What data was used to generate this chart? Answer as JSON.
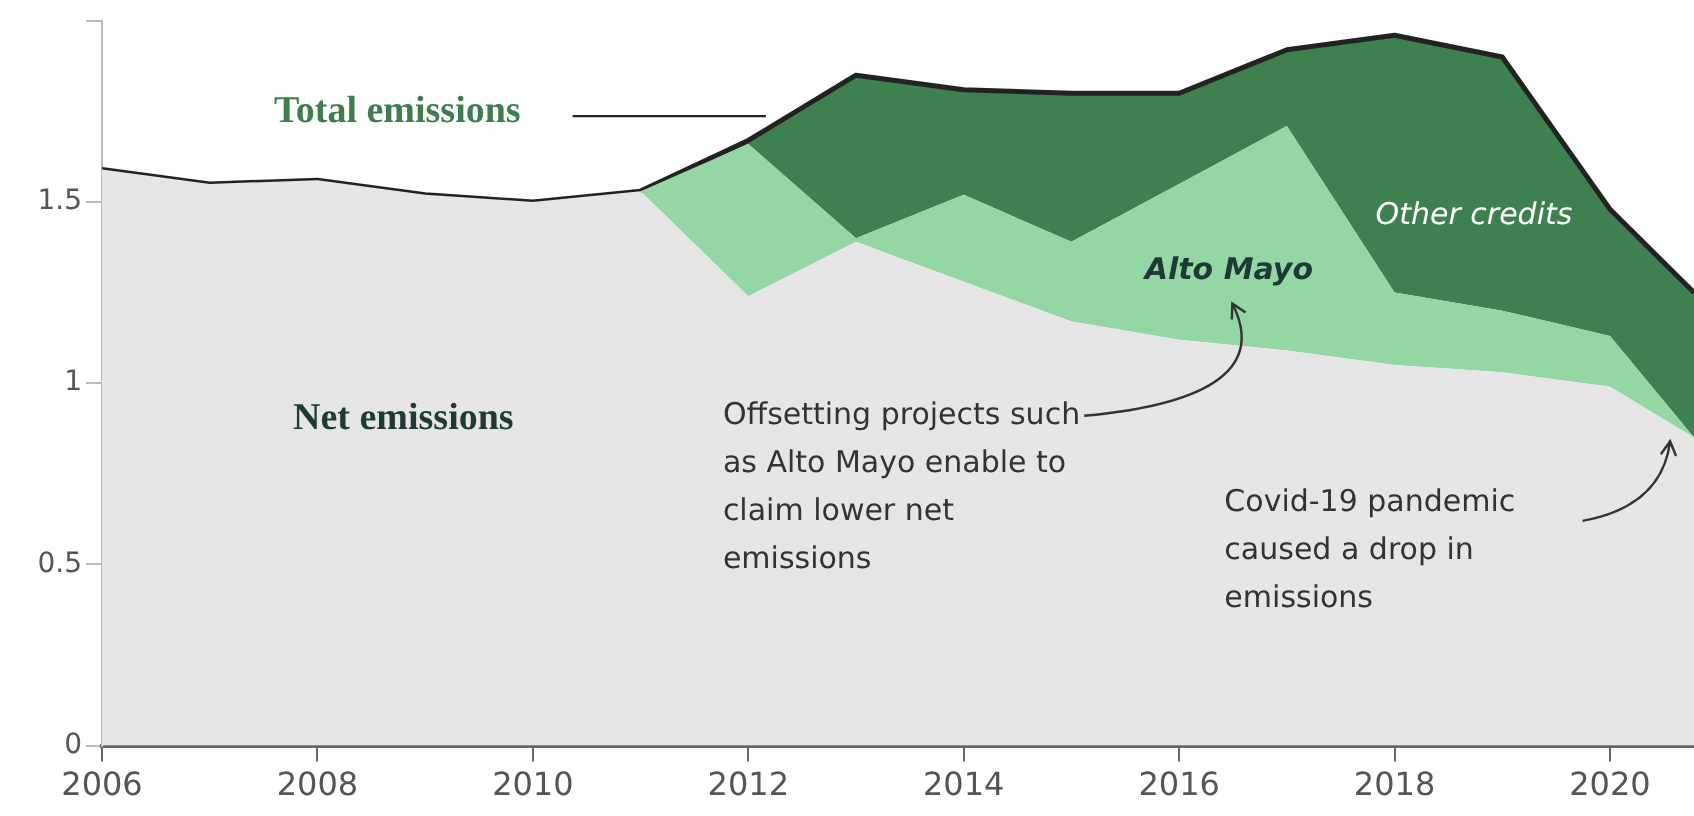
{
  "chart_data": {
    "type": "area",
    "stacked": true,
    "x": [
      2006,
      2007,
      2008,
      2009,
      2010,
      2011,
      2012,
      2013,
      2014,
      2015,
      2016,
      2017,
      2018,
      2019,
      2020,
      2020.78
    ],
    "xlim": [
      2006,
      2020.78
    ],
    "xticks": [
      2006,
      2008,
      2010,
      2012,
      2014,
      2016,
      2018,
      2020
    ],
    "ylim": [
      0,
      2
    ],
    "yticks": [
      0,
      0.5,
      1,
      1.5,
      {
        "value": 2,
        "label": null
      }
    ],
    "series": [
      {
        "name": "Net emissions",
        "color": "#e6e6e6",
        "values": [
          1.59,
          1.55,
          1.56,
          1.52,
          1.5,
          1.53,
          1.24,
          1.39,
          1.28,
          1.17,
          1.12,
          1.09,
          1.05,
          1.03,
          0.99,
          0.85
        ]
      },
      {
        "name": "Alto Mayo",
        "color": "#94d6a4",
        "values": [
          0,
          0,
          0,
          0,
          0,
          0,
          0.42,
          0.01,
          0.24,
          0.22,
          0.43,
          0.62,
          0.2,
          0.17,
          0.14,
          0
        ]
      },
      {
        "name": "Other credits",
        "color": "#3f8050",
        "values": [
          0,
          0,
          0,
          0,
          0,
          0,
          0.01,
          0.45,
          0.29,
          0.41,
          0.25,
          0.21,
          0.71,
          0.7,
          0.35,
          0.4
        ]
      }
    ],
    "annotations": [
      "Total emissions",
      "Offsetting projects such as Alto Mayo enable to claim lower net emissions",
      "Covid-19 pandemic caused a drop in emissions"
    ]
  }
}
